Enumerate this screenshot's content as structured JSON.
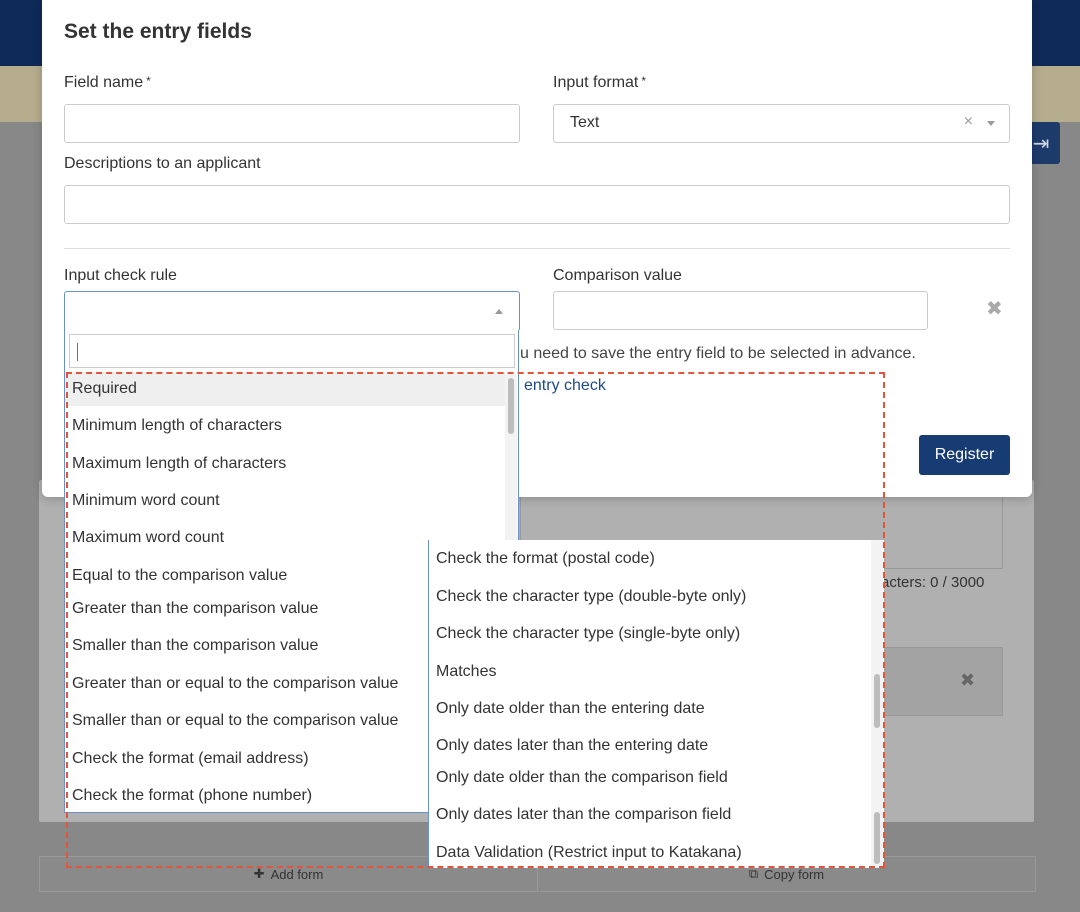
{
  "modal": {
    "title": "Set the entry fields",
    "field_name_label": "Field name",
    "required_mark": "*",
    "field_name_value": "",
    "input_format_label": "Input format",
    "input_format_value": "Text",
    "clear_icon": "×",
    "descriptions_label": "Descriptions to an applicant",
    "descriptions_value": "",
    "input_check_rule_label": "Input check rule",
    "comparison_value_label": "Comparison value",
    "comparison_value": "",
    "hint_text": "u need to save the entry field to be selected in advance.",
    "link_text": "entry check",
    "register_label": "Register"
  },
  "dropdown": {
    "search_value": "",
    "options_top": [
      "Required",
      "Minimum length of characters",
      "Maximum length of characters",
      "Minimum word count",
      "Maximum word count",
      "Equal to the comparison value",
      "Greater than the comparison value",
      "Smaller than the comparison value",
      "Greater than or equal to the comparison value",
      "Smaller than or equal to the comparison value",
      "Check the format (email address)",
      "Check the format (phone number)"
    ],
    "options_bottom": [
      "Check the format (postal code)",
      "Check the character type (double-byte only)",
      "Check the character type (single-byte only)",
      "Matches",
      "Only date older than the entering date",
      "Only dates later than the entering date",
      "Only date older than the comparison field",
      "Only dates later than the comparison field",
      "Data Validation (Restrict input to Katakana)"
    ],
    "highlighted_index": 0
  },
  "background": {
    "counter_text": "racters: 0 / 3000",
    "add_form_label": "Add form",
    "copy_form_label": "Copy form"
  },
  "colors": {
    "primary": "#173b73",
    "highlight_dash": "#e2553a",
    "topbar": "#0e2a56"
  }
}
